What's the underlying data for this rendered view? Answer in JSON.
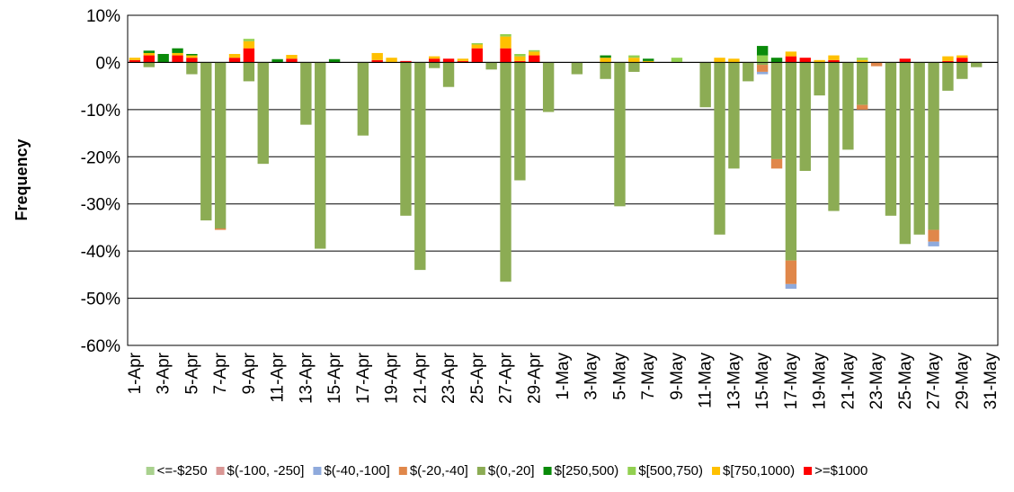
{
  "chart_data": {
    "type": "bar",
    "stacked": true,
    "y_label": "Frequency",
    "categories": [
      "1-Apr",
      null,
      "3-Apr",
      null,
      "5-Apr",
      null,
      "7-Apr",
      null,
      "9-Apr",
      null,
      "11-Apr",
      null,
      "13-Apr",
      null,
      "15-Apr",
      null,
      "17-Apr",
      null,
      "19-Apr",
      null,
      "21-Apr",
      null,
      "23-Apr",
      null,
      "25-Apr",
      null,
      "27-Apr",
      null,
      "29-Apr",
      null,
      "1-May",
      null,
      "3-May",
      null,
      "5-May",
      null,
      "7-May",
      null,
      "9-May",
      null,
      "11-May",
      null,
      "13-May",
      null,
      "15-May",
      null,
      "17-May",
      null,
      "19-May",
      null,
      "21-May",
      null,
      "23-May",
      null,
      "25-May",
      null,
      "27-May",
      null,
      "29-May",
      null,
      "31-May"
    ],
    "ylim": [
      -60,
      10
    ],
    "yticks": [
      {
        "value": -60,
        "label": "-60%"
      },
      {
        "value": -50,
        "label": "-50%"
      },
      {
        "value": -40,
        "label": "-40%"
      },
      {
        "value": -30,
        "label": "-30%"
      },
      {
        "value": -20,
        "label": "-20%"
      },
      {
        "value": -10,
        "label": "-10%"
      },
      {
        "value": 0,
        "label": "0%"
      },
      {
        "value": 10,
        "label": "10%"
      }
    ],
    "grid": true,
    "legend": "bottom",
    "series": [
      {
        "name": "<=-$250",
        "color": "#a9d18e",
        "values": [
          0,
          0,
          0,
          0,
          0,
          0,
          0,
          0,
          0,
          0,
          0,
          0,
          0,
          0,
          0,
          0,
          0,
          0,
          0,
          0,
          0,
          0,
          0,
          0,
          0,
          0,
          0,
          0,
          0,
          0,
          0,
          0,
          0,
          0,
          0,
          0,
          0,
          0,
          0,
          0,
          0,
          0,
          0,
          0,
          0,
          0,
          0,
          0,
          0,
          0,
          0,
          0,
          0,
          0,
          0,
          0,
          0,
          0,
          0,
          0,
          0
        ]
      },
      {
        "name": "$(-100, -250]",
        "color": "#d99694",
        "values": [
          0,
          0,
          0,
          0,
          0,
          0,
          0,
          0,
          0,
          0,
          0,
          0,
          0,
          0,
          0,
          0,
          0,
          0,
          0,
          0,
          0,
          0,
          0,
          0,
          0,
          0,
          0,
          0,
          0,
          0,
          0,
          0,
          0,
          0,
          0,
          0,
          0,
          0,
          0,
          0,
          0,
          0,
          0,
          0,
          0,
          0,
          0,
          0,
          0,
          0,
          0,
          0,
          0,
          0,
          0,
          0,
          0,
          0,
          0,
          0,
          0
        ]
      },
      {
        "name": "$(-40,-100]",
        "color": "#8faadc",
        "values": [
          0,
          0,
          0,
          0,
          0,
          0,
          0,
          0,
          0,
          0,
          0,
          0,
          0,
          0,
          0,
          0,
          0,
          0,
          0,
          0,
          0,
          0,
          0,
          0,
          0,
          0,
          0,
          0,
          0,
          0,
          0,
          0,
          0,
          0,
          0,
          0,
          0,
          0,
          0,
          0,
          0,
          0,
          0,
          0,
          -0.5,
          0,
          -1,
          0,
          0,
          0,
          0,
          0,
          0,
          0,
          0,
          0,
          -1,
          0,
          0,
          0,
          0
        ]
      },
      {
        "name": "$(-20,-40]",
        "color": "#e0874a",
        "values": [
          0,
          0,
          0,
          0,
          0,
          0,
          -0.3,
          0,
          0,
          0,
          0,
          0,
          0,
          0,
          0,
          0,
          0,
          0,
          0,
          0,
          0,
          0,
          0,
          0,
          0,
          0,
          0,
          0,
          0,
          0,
          0,
          0,
          0,
          0,
          0,
          0,
          0,
          0,
          0,
          0,
          0,
          0,
          0,
          0,
          -1.5,
          -2,
          -5,
          0,
          0,
          0,
          0,
          -1,
          -0.8,
          0,
          0,
          0,
          -2.5,
          0,
          0,
          0,
          0
        ]
      },
      {
        "name": "$(0,-20]",
        "color": "#8cac54",
        "values": [
          0,
          -1,
          0,
          0,
          -2.5,
          -33.5,
          -35.2,
          0,
          -4,
          -21.5,
          0,
          0,
          -13.2,
          -39.5,
          0,
          0,
          -15.5,
          0,
          0,
          -32.5,
          -44,
          -1.2,
          -5.2,
          0,
          0,
          -1.5,
          -46.5,
          -25,
          0,
          -10.5,
          0,
          -2.5,
          0,
          -3.5,
          -30.5,
          -2,
          0,
          0,
          0,
          0,
          -9.5,
          -36.5,
          -22.5,
          -4,
          -0.5,
          -20.5,
          -42,
          -23,
          -7,
          -31.5,
          -18.5,
          -9,
          0,
          -32.5,
          -38.5,
          -36.5,
          -35.5,
          -6,
          -3.5,
          -1,
          0
        ]
      },
      {
        "name": "$[250,500)",
        "color": "#0a8a0a",
        "values": [
          0,
          0.5,
          1.8,
          1,
          0.3,
          0,
          0,
          0,
          0,
          0,
          0.7,
          0,
          0,
          0,
          0.7,
          0,
          0,
          0,
          0,
          0,
          0,
          0,
          0,
          0,
          0,
          0,
          0,
          0,
          0,
          0,
          0,
          0,
          0,
          0.5,
          0,
          0,
          0.5,
          0,
          0,
          0,
          0,
          0,
          0,
          0,
          2,
          1,
          0,
          0,
          0,
          0,
          0,
          0,
          0,
          0,
          0,
          0,
          0,
          0,
          0,
          0,
          0
        ]
      },
      {
        "name": "$[500,750)",
        "color": "#92d050",
        "values": [
          0,
          0,
          0,
          0,
          0,
          0,
          0,
          0,
          0.5,
          0,
          0,
          0,
          0,
          0,
          0,
          0,
          0,
          0,
          0,
          0,
          0,
          0,
          0,
          0,
          0.3,
          0,
          0.5,
          0.5,
          0.3,
          0,
          0,
          0,
          0,
          0,
          0,
          0.5,
          0,
          0,
          1,
          0,
          0,
          0,
          0,
          0,
          1.5,
          0,
          0,
          0,
          0,
          0,
          0,
          0.5,
          0,
          0,
          0,
          0,
          0,
          0,
          0,
          0,
          0
        ]
      },
      {
        "name": "$[750,1000)",
        "color": "#ffc000",
        "values": [
          0.5,
          0.5,
          0,
          0.5,
          0.5,
          0,
          0,
          0.8,
          1.5,
          0,
          0,
          0.8,
          0,
          0,
          0,
          0,
          0,
          1.5,
          1,
          0,
          0,
          0.5,
          0,
          0.5,
          0.8,
          0,
          2.5,
          1,
          0.8,
          0,
          0,
          0,
          0,
          1,
          0,
          1,
          0.3,
          0,
          0,
          0,
          0,
          1,
          0.8,
          0,
          0,
          0,
          1,
          0,
          0.5,
          1,
          0,
          0.5,
          0,
          0,
          0,
          0,
          0,
          1,
          0.5,
          0,
          0
        ]
      },
      {
        "name": ">=$1000",
        "color": "#ff0000",
        "values": [
          0.5,
          1.5,
          0,
          1.5,
          1,
          0,
          0,
          1,
          3,
          0,
          0,
          0.8,
          0,
          0,
          0,
          0,
          0,
          0.5,
          0,
          0.3,
          0,
          0.8,
          0.8,
          0.3,
          3,
          0,
          3,
          0.3,
          1.5,
          0,
          0,
          0,
          0,
          0,
          0,
          0,
          0,
          0,
          0,
          0,
          0,
          0,
          0,
          0,
          0,
          0,
          1.3,
          1,
          0,
          0.5,
          0,
          0,
          0,
          0,
          0.8,
          0,
          0,
          0.3,
          1,
          0,
          0
        ]
      }
    ]
  }
}
